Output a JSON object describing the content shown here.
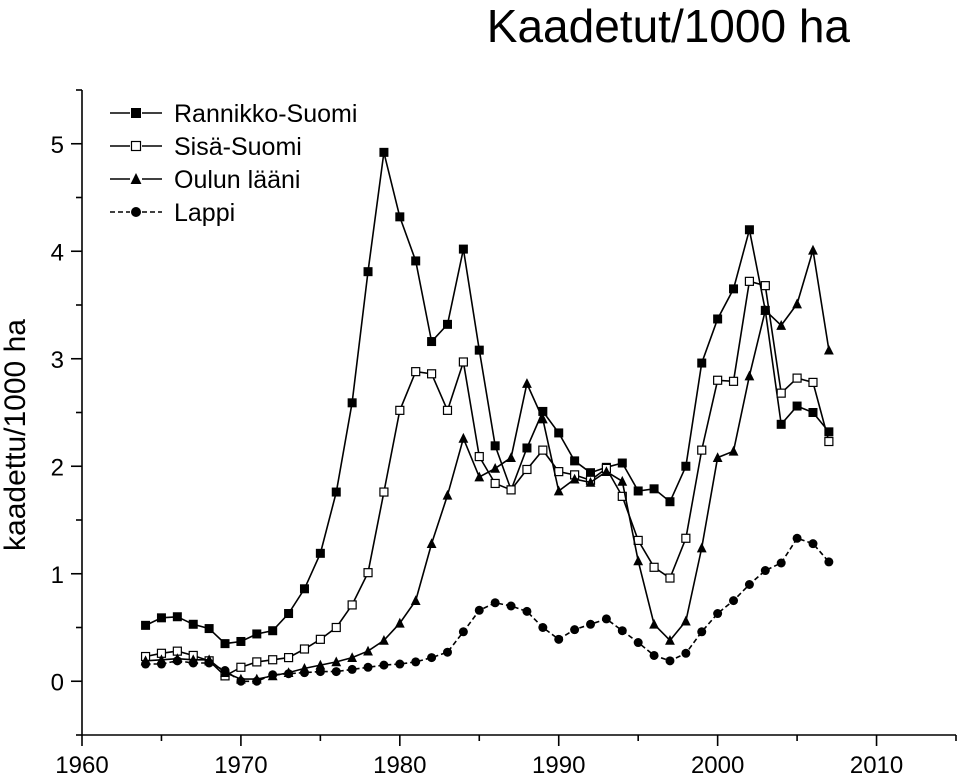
{
  "chart_data": {
    "type": "line",
    "title": "Kaadetut/1000 ha",
    "xlabel": "",
    "ylabel": "kaadettu/1000 ha",
    "xlim": [
      1960,
      2015
    ],
    "ylim": [
      -0.5,
      5.5
    ],
    "x_ticks": [
      1960,
      1970,
      1980,
      1990,
      2000,
      2010
    ],
    "y_ticks": [
      0,
      1,
      2,
      3,
      4,
      5
    ],
    "grid": false,
    "legend_position": "top-left",
    "x": [
      1964,
      1965,
      1966,
      1967,
      1968,
      1969,
      1970,
      1971,
      1972,
      1973,
      1974,
      1975,
      1976,
      1977,
      1978,
      1979,
      1980,
      1981,
      1982,
      1983,
      1984,
      1985,
      1986,
      1987,
      1988,
      1989,
      1990,
      1991,
      1992,
      1993,
      1994,
      1995,
      1996,
      1997,
      1998,
      1999,
      2000,
      2001,
      2002,
      2003,
      2004,
      2005,
      2006,
      2007
    ],
    "series": [
      {
        "name": "Rannikko-Suomi",
        "marker": "square-filled",
        "values": [
          0.52,
          0.59,
          0.6,
          0.53,
          0.49,
          0.35,
          0.37,
          0.44,
          0.47,
          0.63,
          0.86,
          1.19,
          1.76,
          2.59,
          3.81,
          4.92,
          4.32,
          3.91,
          3.16,
          3.32,
          4.02,
          3.08,
          2.19,
          1.78,
          2.17,
          2.51,
          2.31,
          2.05,
          1.94,
          1.99,
          2.03,
          1.77,
          1.79,
          1.67,
          2.0,
          2.96,
          3.37,
          3.65,
          4.2,
          3.45,
          2.39,
          2.56,
          2.5,
          2.32
        ]
      },
      {
        "name": "Sisä-Suomi",
        "marker": "square-open",
        "values": [
          0.23,
          0.26,
          0.28,
          0.24,
          0.19,
          0.05,
          0.13,
          0.18,
          0.2,
          0.22,
          0.3,
          0.39,
          0.5,
          0.71,
          1.01,
          1.76,
          2.52,
          2.88,
          2.86,
          2.52,
          2.97,
          2.09,
          1.84,
          1.78,
          1.97,
          2.15,
          1.95,
          1.92,
          1.87,
          1.98,
          1.72,
          1.31,
          1.06,
          0.96,
          1.33,
          2.15,
          2.8,
          2.79,
          3.72,
          3.68,
          2.68,
          2.82,
          2.78,
          2.23
        ]
      },
      {
        "name": "Oulun lääni",
        "marker": "triangle-filled",
        "values": [
          0.19,
          0.2,
          0.21,
          0.2,
          0.2,
          0.08,
          0.02,
          0.02,
          0.05,
          0.08,
          0.12,
          0.15,
          0.18,
          0.22,
          0.28,
          0.38,
          0.54,
          0.75,
          1.28,
          1.73,
          2.26,
          1.9,
          1.98,
          2.08,
          2.77,
          2.44,
          1.77,
          1.88,
          1.85,
          1.95,
          1.86,
          1.12,
          0.53,
          0.38,
          0.56,
          1.24,
          2.08,
          2.14,
          2.84,
          3.45,
          3.31,
          3.51,
          4.01,
          3.08
        ]
      },
      {
        "name": "Lappi",
        "marker": "circle-filled",
        "values": [
          0.16,
          0.16,
          0.19,
          0.17,
          0.17,
          0.1,
          0.0,
          0.0,
          0.06,
          0.07,
          0.08,
          0.09,
          0.09,
          0.11,
          0.13,
          0.15,
          0.16,
          0.18,
          0.22,
          0.27,
          0.46,
          0.66,
          0.73,
          0.7,
          0.65,
          0.5,
          0.39,
          0.48,
          0.53,
          0.58,
          0.47,
          0.36,
          0.24,
          0.19,
          0.26,
          0.46,
          0.63,
          0.75,
          0.9,
          1.03,
          1.1,
          1.33,
          1.28,
          1.11
        ]
      }
    ]
  }
}
